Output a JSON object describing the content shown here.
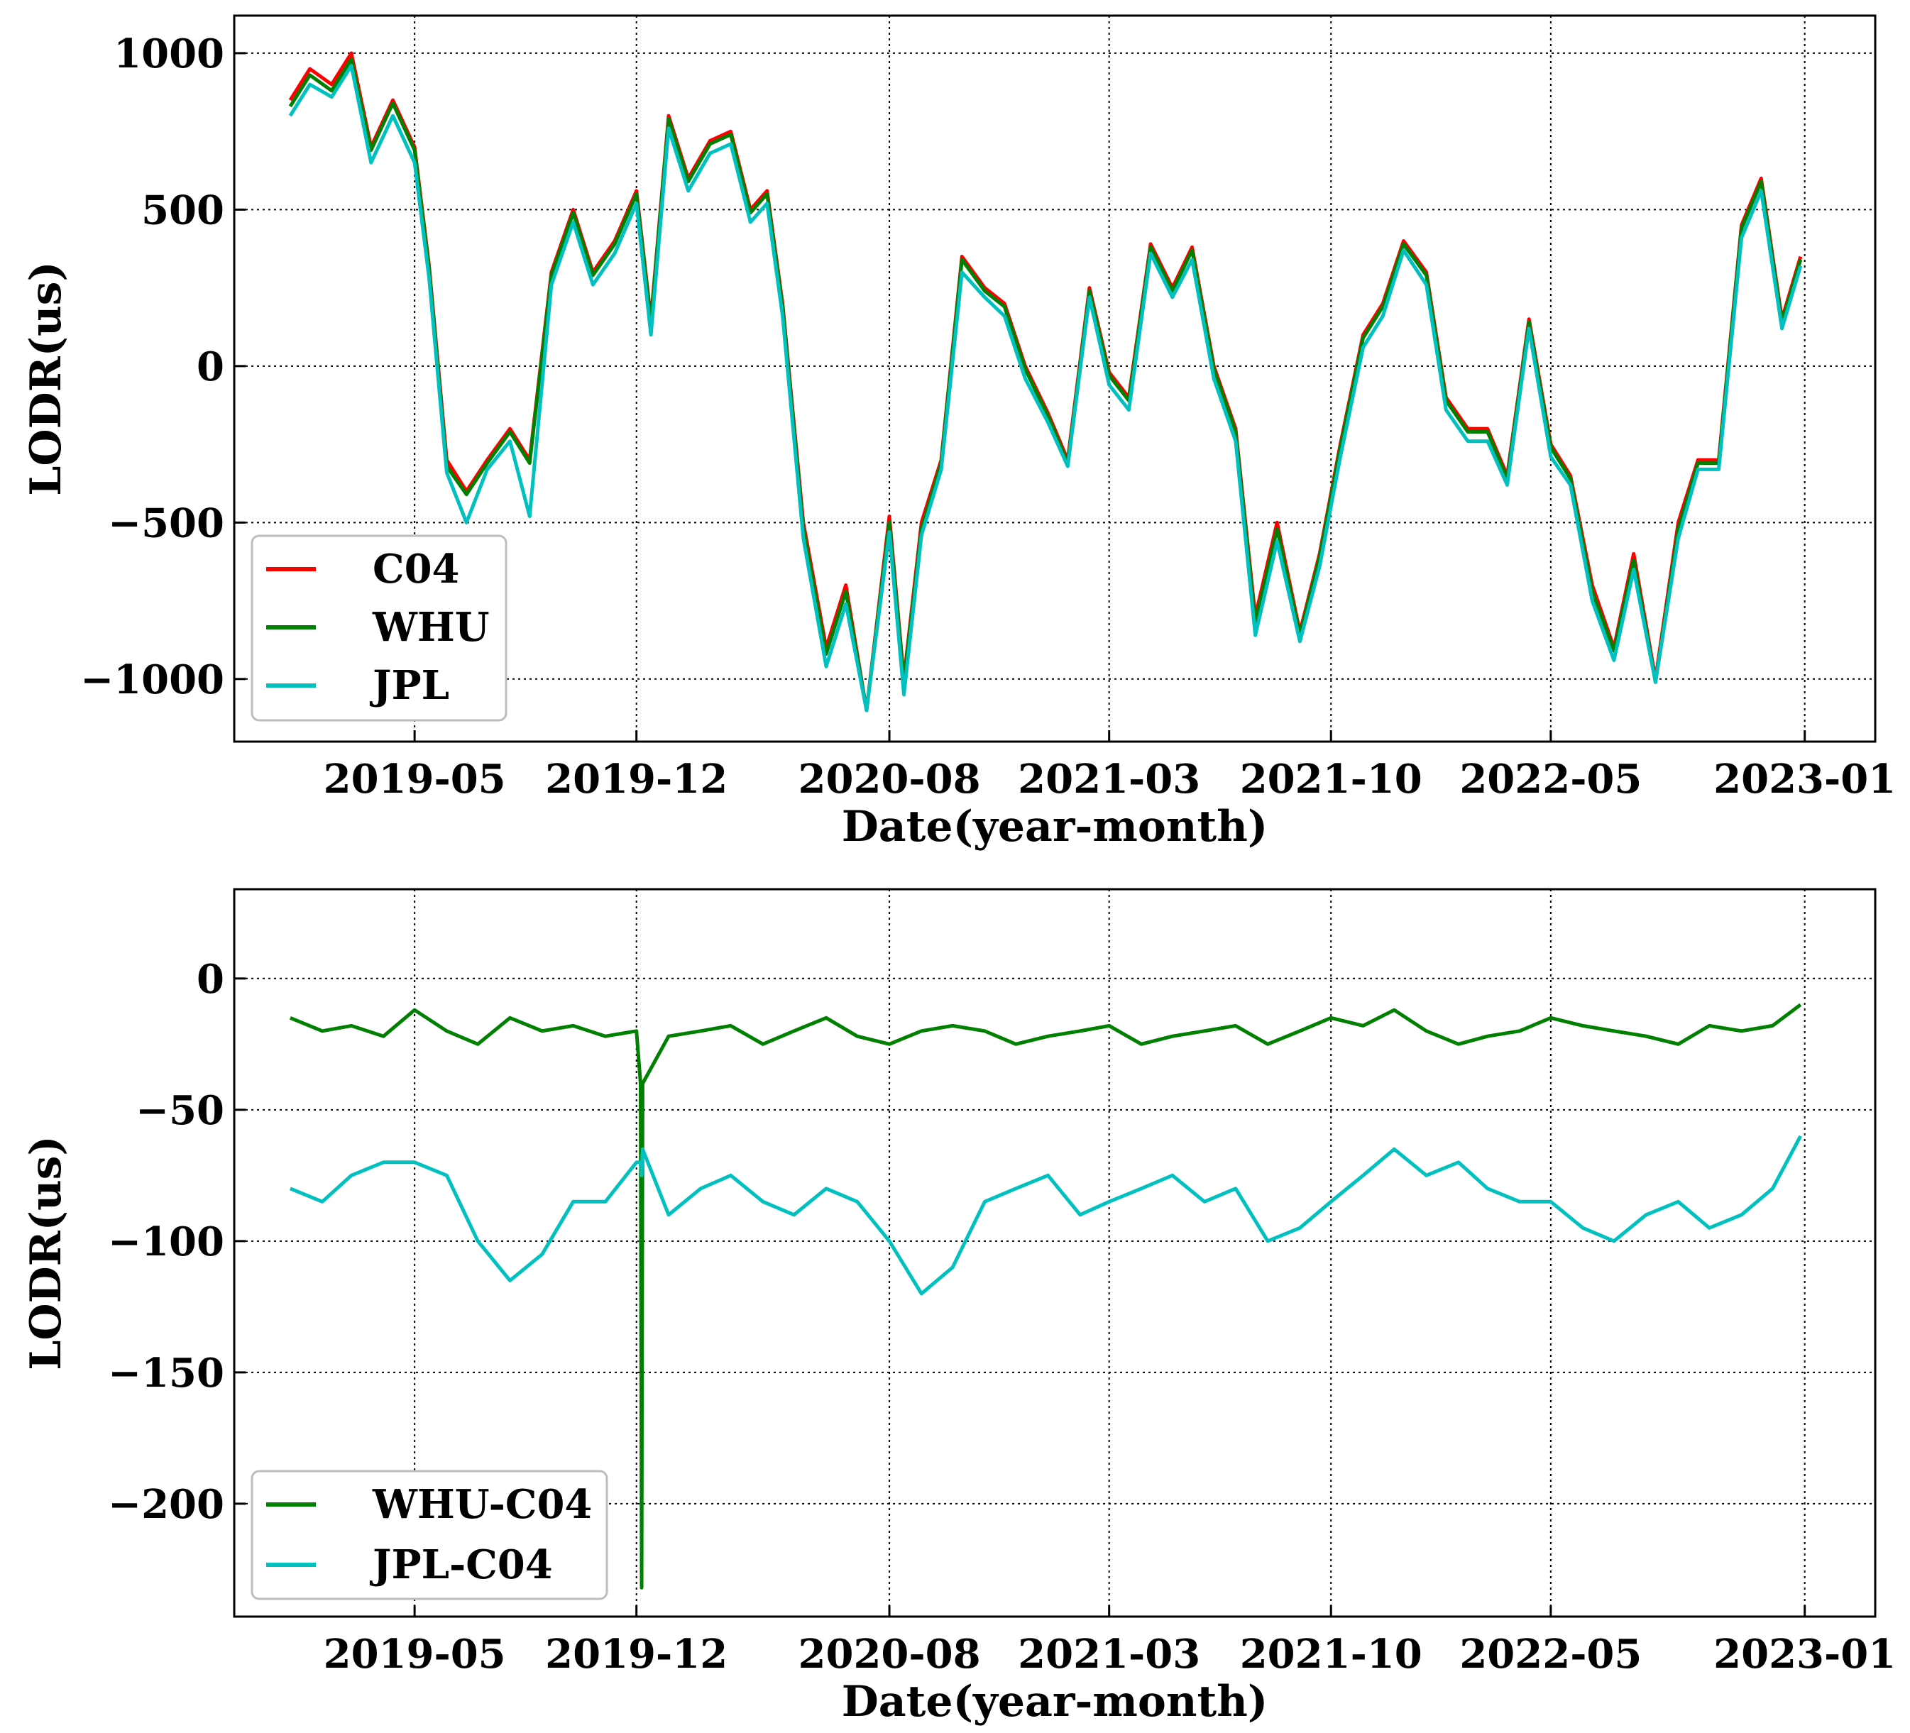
{
  "colors": {
    "c04": "#ff0000",
    "whu": "#008000",
    "jpl": "#00c0c0",
    "whu_c04": "#008000",
    "jpl_c04": "#00c0c0"
  },
  "chart_data": [
    {
      "type": "line",
      "xlabel": "Date(year-month)",
      "ylabel": "LODR(us)",
      "x_tick_labels": [
        "2019-05",
        "2019-12",
        "2020-08",
        "2021-03",
        "2021-10",
        "2022-05",
        "2023-01"
      ],
      "x_ticks": [
        "2019-05-01",
        "2019-12-01",
        "2020-08-01",
        "2021-03-01",
        "2021-10-01",
        "2022-05-01",
        "2023-01-01"
      ],
      "y_ticks": [
        1000,
        500,
        0,
        -500,
        -1000
      ],
      "y_tick_labels": [
        "1000",
        "500",
        "0",
        "−500",
        "−1000"
      ],
      "xlim": [
        "2018-11-08",
        "2023-03-10"
      ],
      "ylim": [
        -1200,
        1120
      ],
      "grid": true,
      "legend_placement": "lower-left",
      "series_keys": [
        "c04",
        "whu",
        "jpl"
      ],
      "series": [
        {
          "key": "c04",
          "name": "C04",
          "color": "#ff0000"
        },
        {
          "key": "whu",
          "name": "WHU",
          "color": "#008000"
        },
        {
          "key": "jpl",
          "name": "JPL",
          "color": "#00c0c0"
        }
      ],
      "x": [
        "2019-01-01",
        "2019-01-20",
        "2019-02-10",
        "2019-03-01",
        "2019-03-20",
        "2019-04-10",
        "2019-05-01",
        "2019-05-15",
        "2019-06-01",
        "2019-06-20",
        "2019-07-10",
        "2019-08-01",
        "2019-08-20",
        "2019-09-10",
        "2019-10-01",
        "2019-10-20",
        "2019-11-10",
        "2019-12-01",
        "2019-12-15",
        "2020-01-01",
        "2020-01-20",
        "2020-02-10",
        "2020-03-01",
        "2020-03-20",
        "2020-04-05",
        "2020-04-20",
        "2020-05-10",
        "2020-06-01",
        "2020-06-20",
        "2020-07-10",
        "2020-08-01",
        "2020-08-15",
        "2020-09-01",
        "2020-09-20",
        "2020-10-10",
        "2020-11-01",
        "2020-11-20",
        "2020-12-10",
        "2021-01-01",
        "2021-01-20",
        "2021-02-10",
        "2021-03-01",
        "2021-03-20",
        "2021-04-10",
        "2021-05-01",
        "2021-05-20",
        "2021-06-10",
        "2021-07-01",
        "2021-07-20",
        "2021-08-10",
        "2021-09-01",
        "2021-09-20",
        "2021-10-10",
        "2021-11-01",
        "2021-11-20",
        "2021-12-10",
        "2022-01-01",
        "2022-01-20",
        "2022-02-10",
        "2022-03-01",
        "2022-03-20",
        "2022-04-10",
        "2022-05-01",
        "2022-05-20",
        "2022-06-10",
        "2022-07-01",
        "2022-07-20",
        "2022-08-10",
        "2022-09-01",
        "2022-09-20",
        "2022-10-10",
        "2022-11-01",
        "2022-11-20",
        "2022-12-10",
        "2022-12-28"
      ],
      "values": {
        "c04": [
          850,
          950,
          900,
          1000,
          700,
          850,
          700,
          320,
          -300,
          -400,
          -300,
          -200,
          -300,
          300,
          500,
          300,
          400,
          560,
          150,
          800,
          600,
          720,
          750,
          500,
          560,
          200,
          -500,
          -900,
          -700,
          -1100,
          -480,
          -1000,
          -500,
          -300,
          350,
          250,
          200,
          0,
          -150,
          -300,
          250,
          -20,
          -100,
          390,
          250,
          380,
          0,
          -200,
          -800,
          -500,
          -850,
          -600,
          -250,
          100,
          200,
          400,
          300,
          -100,
          -200,
          -200,
          -350,
          150,
          -250,
          -350,
          -700,
          -900,
          -600,
          -1000,
          -500,
          -300,
          -300,
          450,
          600,
          150,
          350
        ],
        "whu": [
          830,
          930,
          880,
          980,
          690,
          840,
          690,
          310,
          -320,
          -410,
          -310,
          -210,
          -310,
          290,
          490,
          290,
          390,
          550,
          140,
          790,
          590,
          710,
          740,
          490,
          550,
          190,
          -520,
          -920,
          -720,
          -1100,
          -500,
          -1010,
          -520,
          -310,
          340,
          240,
          190,
          -10,
          -160,
          -310,
          240,
          -30,
          -110,
          380,
          240,
          370,
          -10,
          -210,
          -820,
          -520,
          -860,
          -610,
          -260,
          90,
          190,
          390,
          290,
          -110,
          -210,
          -210,
          -360,
          140,
          -260,
          -360,
          -720,
          -910,
          -620,
          -1010,
          -520,
          -310,
          -310,
          440,
          590,
          140,
          340
        ],
        "jpl": [
          800,
          900,
          860,
          960,
          650,
          800,
          650,
          280,
          -340,
          -500,
          -330,
          -240,
          -480,
          260,
          460,
          260,
          360,
          520,
          100,
          760,
          560,
          680,
          710,
          460,
          520,
          160,
          -550,
          -960,
          -760,
          -1100,
          -530,
          -1050,
          -540,
          -330,
          300,
          220,
          160,
          -40,
          -180,
          -320,
          220,
          -60,
          -140,
          360,
          220,
          340,
          -40,
          -240,
          -860,
          -560,
          -880,
          -640,
          -290,
          60,
          160,
          370,
          260,
          -140,
          -240,
          -240,
          -380,
          120,
          -290,
          -380,
          -750,
          -940,
          -650,
          -1010,
          -550,
          -330,
          -330,
          410,
          560,
          120,
          320
        ]
      }
    },
    {
      "type": "line",
      "xlabel": "Date(year-month)",
      "ylabel": "LODR(us)",
      "x_tick_labels": [
        "2019-05",
        "2019-12",
        "2020-08",
        "2021-03",
        "2021-10",
        "2022-05",
        "2023-01"
      ],
      "x_ticks": [
        "2019-05-01",
        "2019-12-01",
        "2020-08-01",
        "2021-03-01",
        "2021-10-01",
        "2022-05-01",
        "2023-01-01"
      ],
      "y_ticks": [
        0,
        -50,
        -100,
        -150,
        -200
      ],
      "y_tick_labels": [
        "0",
        "−50",
        "−100",
        "−150",
        "−200"
      ],
      "xlim": [
        "2018-11-08",
        "2023-03-10"
      ],
      "ylim": [
        -243,
        34
      ],
      "grid": true,
      "legend_placement": "lower-left",
      "series_keys": [
        "whu_c04",
        "jpl_c04"
      ],
      "series": [
        {
          "key": "whu_c04",
          "name": "WHU-C04",
          "color": "#008000"
        },
        {
          "key": "jpl_c04",
          "name": "JPL-C04",
          "color": "#00c0c0"
        }
      ],
      "x": [
        "2019-01-01",
        "2019-02-01",
        "2019-03-01",
        "2019-04-01",
        "2019-05-01",
        "2019-06-01",
        "2019-07-01",
        "2019-08-01",
        "2019-09-01",
        "2019-10-01",
        "2019-11-01",
        "2019-12-01",
        "2019-12-05",
        "2019-12-06",
        "2019-12-07",
        "2020-01-01",
        "2020-02-01",
        "2020-03-01",
        "2020-04-01",
        "2020-05-01",
        "2020-06-01",
        "2020-07-01",
        "2020-08-01",
        "2020-09-01",
        "2020-10-01",
        "2020-11-01",
        "2020-12-01",
        "2021-01-01",
        "2021-02-01",
        "2021-03-01",
        "2021-04-01",
        "2021-05-01",
        "2021-06-01",
        "2021-07-01",
        "2021-08-01",
        "2021-09-01",
        "2021-10-01",
        "2021-11-01",
        "2021-12-01",
        "2022-01-01",
        "2022-02-01",
        "2022-03-01",
        "2022-04-01",
        "2022-05-01",
        "2022-06-01",
        "2022-07-01",
        "2022-08-01",
        "2022-09-01",
        "2022-10-01",
        "2022-11-01",
        "2022-12-01",
        "2022-12-28"
      ],
      "values": {
        "whu_c04": [
          -15,
          -20,
          -18,
          -22,
          -12,
          -20,
          -25,
          -15,
          -20,
          -18,
          -22,
          -20,
          -40,
          -232,
          -40,
          -22,
          -20,
          -18,
          -25,
          -20,
          -15,
          -22,
          -25,
          -20,
          -18,
          -20,
          -25,
          -22,
          -20,
          -18,
          -25,
          -22,
          -20,
          -18,
          -25,
          -20,
          -15,
          -18,
          -12,
          -20,
          -25,
          -22,
          -20,
          -15,
          -18,
          -20,
          -22,
          -25,
          -18,
          -20,
          -18,
          -10
        ],
        "jpl_c04": [
          -80,
          -85,
          -75,
          -70,
          -70,
          -75,
          -100,
          -115,
          -105,
          -85,
          -85,
          -70,
          -70,
          -75,
          -65,
          -90,
          -80,
          -75,
          -85,
          -90,
          -80,
          -85,
          -100,
          -120,
          -110,
          -85,
          -80,
          -75,
          -90,
          -85,
          -80,
          -75,
          -85,
          -80,
          -100,
          -95,
          -85,
          -75,
          -65,
          -75,
          -70,
          -80,
          -85,
          -85,
          -95,
          -100,
          -90,
          -85,
          -95,
          -90,
          -80,
          -60
        ]
      }
    }
  ]
}
